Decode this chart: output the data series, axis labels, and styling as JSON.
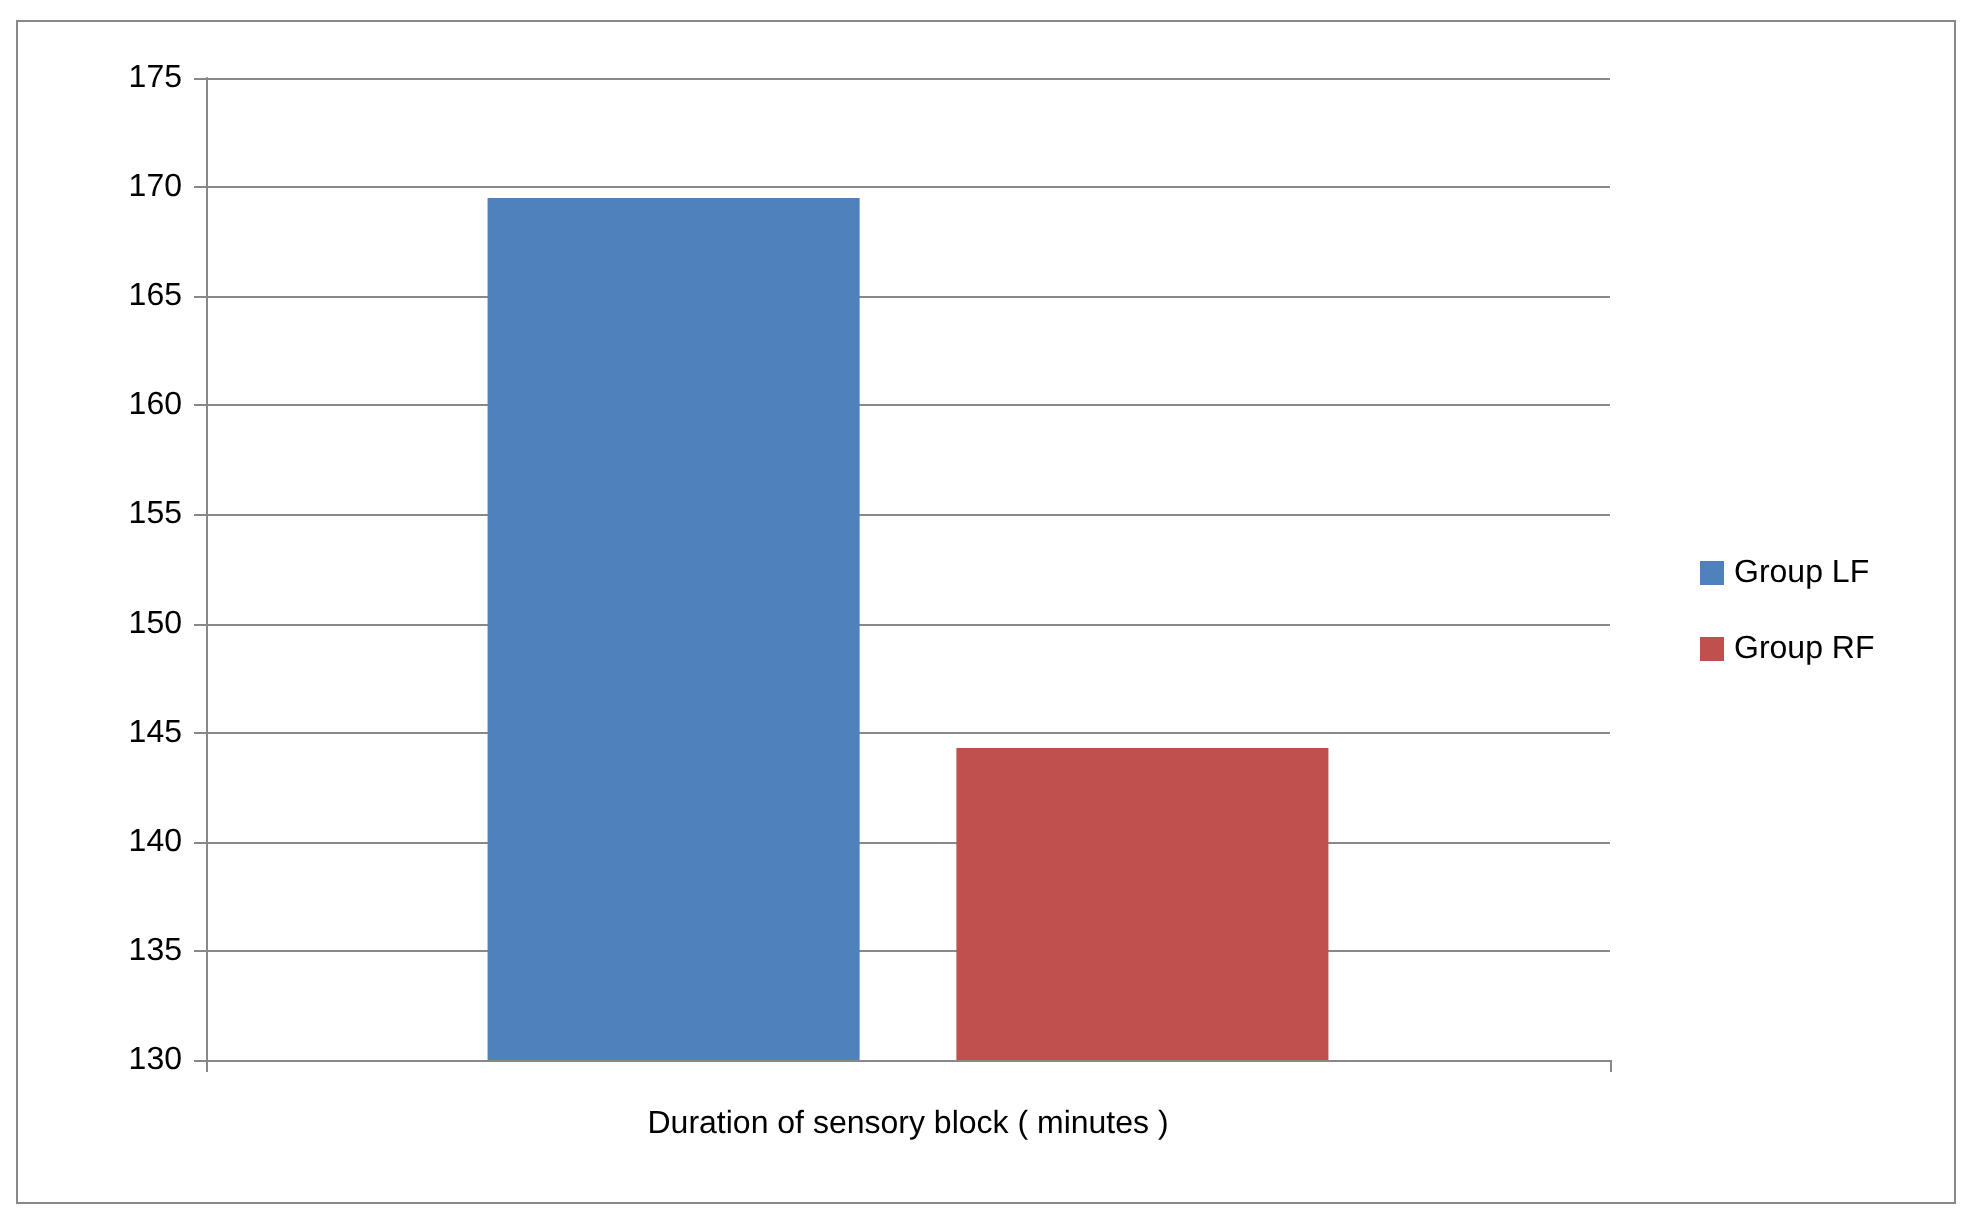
{
  "chart_data": {
    "type": "bar",
    "categories": [
      "Duration of sensory block ( minutes )"
    ],
    "series": [
      {
        "name": "Group LF",
        "color": "#4f81bd",
        "values": [
          169.5
        ]
      },
      {
        "name": "Group RF",
        "color": "#c0504d",
        "values": [
          144.3
        ]
      }
    ],
    "ylim": [
      130,
      175
    ],
    "yticks": [
      130,
      135,
      140,
      145,
      150,
      155,
      160,
      165,
      170,
      175
    ],
    "grid": "y",
    "legend": "right"
  }
}
